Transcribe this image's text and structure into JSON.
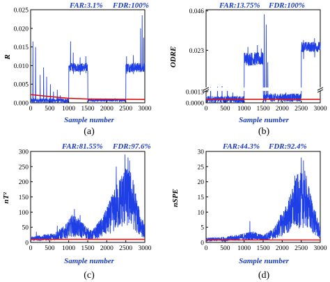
{
  "colors": {
    "signal": "#1f3fe6",
    "threshold": "#e01010",
    "text_blue": "#1a3cc8"
  },
  "chart_data": [
    {
      "panel_label": "(a)",
      "type": "line",
      "ylabel": "R",
      "xlabel": "Sample number",
      "far_label": "FAR:3.1%",
      "fdr_label": "FDR:100%",
      "xlim": [
        0,
        3000
      ],
      "ylim": [
        0,
        0.025
      ],
      "xticks": [
        "0",
        "500",
        "1000",
        "1500",
        "2000",
        "2500",
        "3000"
      ],
      "yticks": [
        "0.000",
        "0.005",
        "0.010",
        "0.015",
        "0.020",
        "0.025"
      ],
      "ytick_values": [
        0,
        0.005,
        0.01,
        0.015,
        0.02,
        0.025
      ],
      "threshold_points": [
        [
          0,
          0.0022
        ],
        [
          400,
          0.0018
        ],
        [
          1000,
          0.0012
        ],
        [
          1500,
          0.001
        ],
        [
          3000,
          0.0009
        ]
      ],
      "segments": [
        {
          "x": [
            0,
            1000
          ],
          "base": 0.0006,
          "amp": 0.0006,
          "spikes": [
            [
              60,
              0.0165
            ],
            [
              130,
              0.015
            ],
            [
              250,
              0.0075
            ],
            [
              340,
              0.0095
            ],
            [
              420,
              0.007
            ],
            [
              520,
              0.005
            ],
            [
              600,
              0.003
            ],
            [
              700,
              0.0035
            ],
            [
              780,
              0.002
            ]
          ]
        },
        {
          "x": [
            1000,
            1500
          ],
          "base": 0.0095,
          "amp": 0.0012,
          "spikes": [
            [
              1050,
              0.0165
            ],
            [
              1120,
              0.0135
            ],
            [
              1300,
              0.0122
            ],
            [
              1450,
              0.0125
            ]
          ]
        },
        {
          "x": [
            1500,
            2500
          ],
          "base": 0.0007,
          "amp": 0.0004,
          "spikes": [
            [
              1600,
              0.0012
            ],
            [
              1800,
              0.0011
            ],
            [
              2300,
              0.0011
            ]
          ]
        },
        {
          "x": [
            2500,
            3000
          ],
          "base": 0.0095,
          "amp": 0.0013,
          "spikes": [
            [
              2520,
              0.0125
            ],
            [
              2700,
              0.0128
            ],
            [
              2890,
              0.02
            ],
            [
              2930,
              0.0235
            ],
            [
              2970,
              0.0175
            ]
          ]
        }
      ]
    },
    {
      "panel_label": "(b)",
      "type": "line",
      "ylabel": "ODRE",
      "xlabel": "Sample number",
      "far_label": "FAR:13.75%",
      "fdr_label": "FDR:100%",
      "xlim": [
        0,
        3000
      ],
      "ylim": [
        0,
        0.046
      ],
      "broken_axis": true,
      "xticks": [
        "0",
        "500",
        "1000",
        "1500",
        "2000",
        "2500",
        "3000"
      ],
      "yticks": [
        "0.0000",
        "0.0013",
        "0.023",
        "0.046"
      ],
      "ytick_values": [
        0,
        0.0013,
        0.023,
        0.046
      ],
      "threshold_points": [
        [
          0,
          0.0004
        ],
        [
          3000,
          0.0004
        ]
      ],
      "segments": [
        {
          "x": [
            0,
            1000
          ],
          "base": 0.0004,
          "amp": 0.0004,
          "spikes": [
            [
              120,
              0.0016
            ],
            [
              300,
              0.0018
            ],
            [
              420,
              0.0021
            ],
            [
              560,
              0.0014
            ],
            [
              700,
              0.0012
            ]
          ]
        },
        {
          "x": [
            1000,
            1500
          ],
          "base": 0.018,
          "amp": 0.004,
          "spikes": [
            [
              1100,
              0.025
            ],
            [
              1350,
              0.026
            ],
            [
              1450,
              0.024
            ]
          ]
        },
        {
          "x": [
            1500,
            2500
          ],
          "base": 0.0006,
          "amp": 0.0005,
          "spikes": [
            [
              1530,
              0.044
            ],
            [
              1580,
              0.038
            ],
            [
              1620,
              0.016
            ],
            [
              2100,
              0.0012
            ]
          ]
        },
        {
          "x": [
            2500,
            3000
          ],
          "base": 0.025,
          "amp": 0.003,
          "spikes": [
            [
              2560,
              0.029
            ],
            [
              2850,
              0.03
            ]
          ]
        }
      ]
    },
    {
      "panel_label": "(c)",
      "type": "line",
      "ylabel": "nT²",
      "xlabel": "Sample number",
      "far_label": "FAR:81.55%",
      "fdr_label": "FDR:97.6%",
      "xlim": [
        0,
        3000
      ],
      "ylim": [
        0,
        300
      ],
      "xticks": [
        "0",
        "500",
        "1000",
        "1500",
        "2000",
        "2500",
        "3000"
      ],
      "yticks": [
        "0",
        "50",
        "100",
        "150",
        "200",
        "250",
        "300"
      ],
      "ytick_values": [
        0,
        50,
        100,
        150,
        200,
        250,
        300
      ],
      "threshold_points": [
        [
          0,
          10
        ],
        [
          3000,
          10
        ]
      ],
      "envelope": [
        [
          0,
          15
        ],
        [
          300,
          20
        ],
        [
          600,
          25
        ],
        [
          900,
          45
        ],
        [
          1100,
          75
        ],
        [
          1300,
          60
        ],
        [
          1600,
          30
        ],
        [
          1900,
          70
        ],
        [
          2200,
          140
        ],
        [
          2450,
          200
        ],
        [
          2650,
          190
        ],
        [
          2850,
          90
        ],
        [
          3000,
          45
        ]
      ],
      "spikes": [
        [
          150,
          35
        ],
        [
          700,
          55
        ],
        [
          1150,
          110
        ],
        [
          1300,
          90
        ],
        [
          2480,
          290
        ],
        [
          2560,
          280
        ],
        [
          2600,
          270
        ],
        [
          2250,
          250
        ]
      ]
    },
    {
      "panel_label": "(d)",
      "type": "line",
      "ylabel": "nSPE",
      "xlabel": "Sample number",
      "far_label": "FAR:44.3%",
      "fdr_label": "FDR:92.4%",
      "xlim": [
        0,
        3000
      ],
      "ylim": [
        0,
        30
      ],
      "xticks": [
        "0",
        "500",
        "1000",
        "1500",
        "2000",
        "2500",
        "3000"
      ],
      "yticks": [
        "0",
        "5",
        "10",
        "15",
        "20",
        "25",
        "30"
      ],
      "ytick_values": [
        0,
        5,
        10,
        15,
        20,
        25,
        30
      ],
      "threshold_points": [
        [
          0,
          0.8
        ],
        [
          3000,
          0.8
        ]
      ],
      "envelope": [
        [
          0,
          1.2
        ],
        [
          500,
          1.5
        ],
        [
          900,
          2.2
        ],
        [
          1200,
          3.0
        ],
        [
          1500,
          2.0
        ],
        [
          1800,
          4.0
        ],
        [
          2100,
          10
        ],
        [
          2400,
          18
        ],
        [
          2600,
          19
        ],
        [
          2800,
          11
        ],
        [
          3000,
          4
        ]
      ],
      "spikes": [
        [
          1150,
          7
        ],
        [
          1950,
          9
        ],
        [
          2500,
          28
        ],
        [
          2560,
          27
        ],
        [
          2330,
          22
        ]
      ]
    }
  ]
}
